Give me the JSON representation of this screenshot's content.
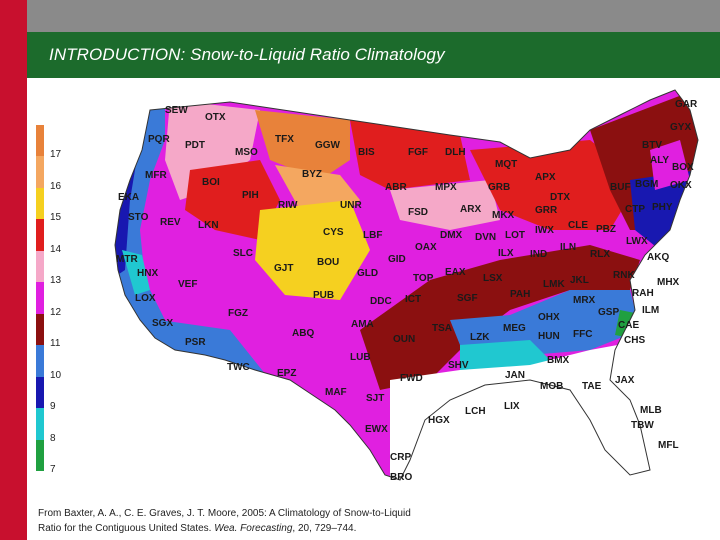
{
  "title": "INTRODUCTION: Snow-to-Liquid Ratio Climatology",
  "legend": {
    "labels": [
      "17",
      "16",
      "15",
      "14",
      "13",
      "12",
      "11",
      "10",
      "9",
      "8",
      "7"
    ],
    "colors": [
      "#e8823a",
      "#f4a760",
      "#f5d020",
      "#e01e1e",
      "#f5a8c8",
      "#e020e0",
      "#8b1010",
      "#3a7ad8",
      "#1818b0",
      "#20c8d0",
      "#20a040"
    ]
  },
  "stations": [
    "SEW",
    "OTX",
    "PQR",
    "PDT",
    "TFX",
    "GGW",
    "BIS",
    "FGF",
    "DLH",
    "MQT",
    "GAR",
    "GYX",
    "BTV",
    "ALY",
    "BOX",
    "OKX",
    "BGM",
    "BUF",
    "CTP",
    "PHY",
    "MFR",
    "BOI",
    "MSO",
    "BYZ",
    "ABR",
    "MPX",
    "GRB",
    "APX",
    "DTX",
    "GRR",
    "EKA",
    "PIH",
    "RIW",
    "UNR",
    "FSD",
    "ARX",
    "MKX",
    "LOT",
    "IWX",
    "CLE",
    "PBZ",
    "LWX",
    "AKQ",
    "STO",
    "REV",
    "LKN",
    "CYS",
    "LBF",
    "DMX",
    "DVN",
    "ILN",
    "RLX",
    "RNK",
    "MHX",
    "MTR",
    "HNX",
    "SLC",
    "GJT",
    "BOU",
    "GID",
    "OAX",
    "ILX",
    "IND",
    "JKL",
    "RAH",
    "ILM",
    "VEF",
    "GLD",
    "TOP",
    "EAX",
    "LSX",
    "LMK",
    "MRX",
    "GSP",
    "CAE",
    "CHS",
    "LOX",
    "FGZ",
    "PUB",
    "DDC",
    "ICT",
    "SGF",
    "PAH",
    "OHX",
    "FFC",
    "SGX",
    "ABQ",
    "AMA",
    "TSA",
    "MEG",
    "HUN",
    "BMX",
    "PSR",
    "OUN",
    "LZK",
    "SHV",
    "JAN",
    "MOB",
    "TAE",
    "JAX",
    "TWC",
    "EPZ",
    "LUB",
    "FWD",
    "LCH",
    "LIX",
    "MLB",
    "TBW",
    "MFL",
    "MAF",
    "SJT",
    "HGX",
    "EWX",
    "CRP",
    "BRO"
  ],
  "caption": {
    "line1": "From Baxter, A. A., C. E. Graves, J. T. Moore, 2005: A Climatology of Snow-to-Liquid",
    "line2_a": "Ratio for the Contiguous United States. ",
    "line2_b": "Wea. Forecasting",
    "line2_c": ", 20, 729–744."
  }
}
